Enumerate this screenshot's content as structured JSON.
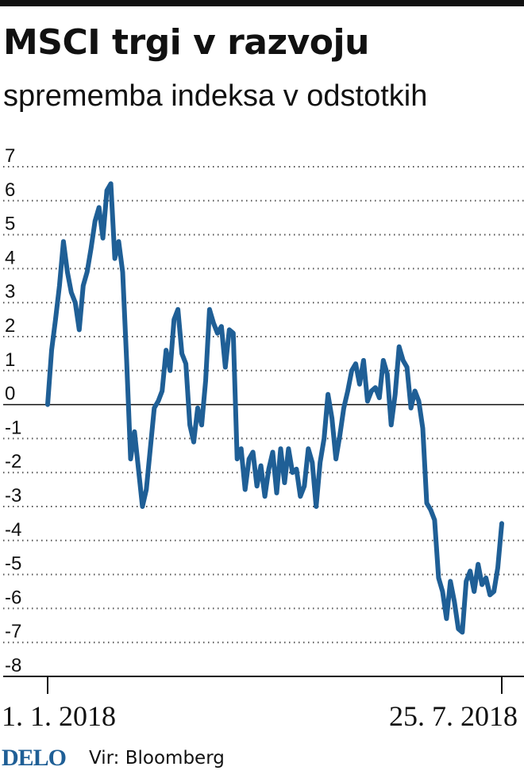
{
  "header": {
    "title": "MSCI trgi v razvoju",
    "subtitle": "sprememba indeksa v odstotkih"
  },
  "footer": {
    "logo": "DELO",
    "source": "Vir: Bloomberg"
  },
  "colors": {
    "line": "#1f5f96",
    "grid": "#555555",
    "axis": "#111111",
    "logo": "#1f5f96"
  },
  "chart_data": {
    "type": "line",
    "title": "MSCI trgi v razvoju",
    "subtitle": "sprememba indeksa v odstotkih",
    "xlabel": "",
    "ylabel": "",
    "ylim": [
      -8,
      7
    ],
    "yticks": [
      7,
      6,
      5,
      4,
      3,
      2,
      1,
      0,
      -1,
      -2,
      -3,
      -4,
      -5,
      -6,
      -7,
      -8
    ],
    "ytick_labels": [
      "7",
      "6",
      "5",
      "4",
      "3",
      "2",
      "1",
      "0",
      "-1",
      "-2",
      "-3",
      "-4",
      "-5",
      "-6",
      "-7",
      "-8"
    ],
    "x_tick_labels": [
      "1. 1. 2018",
      "25. 7. 2018"
    ],
    "xlim": [
      "2018-01-01",
      "2018-07-25"
    ],
    "grid": "horizontal dotted",
    "series": [
      {
        "values": [
          0.0,
          1.6,
          2.5,
          3.5,
          4.8,
          3.9,
          3.3,
          3.0,
          2.2,
          3.5,
          3.9,
          4.6,
          5.4,
          5.8,
          4.9,
          6.3,
          6.5,
          4.3,
          4.8,
          3.9,
          1.3,
          -1.6,
          -0.8,
          -1.9,
          -3.0,
          -2.5,
          -1.3,
          -0.1,
          0.1,
          0.4,
          1.6,
          1.0,
          2.5,
          2.8,
          1.5,
          1.2,
          -0.6,
          -1.1,
          -0.1,
          -0.6,
          0.7,
          2.8,
          2.4,
          2.1,
          2.3,
          1.1,
          2.2,
          2.1,
          -1.6,
          -1.3,
          -2.5,
          -1.6,
          -1.4,
          -2.4,
          -1.8,
          -2.7,
          -1.9,
          -1.4,
          -2.6,
          -1.3,
          -2.3,
          -1.3,
          -2.0,
          -1.9,
          -2.7,
          -2.4,
          -1.3,
          -1.7,
          -3.0,
          -1.7,
          -1.0,
          0.3,
          -0.4,
          -1.6,
          -0.9,
          -0.1,
          0.4,
          1.0,
          1.2,
          0.6,
          1.3,
          0.1,
          0.4,
          0.5,
          0.2,
          1.3,
          0.9,
          -0.6,
          0.3,
          1.7,
          1.3,
          1.1,
          -0.1,
          0.4,
          0.1,
          -0.7,
          -2.9,
          -3.1,
          -3.4,
          -5.1,
          -5.5,
          -6.3,
          -5.2,
          -5.8,
          -6.6,
          -6.7,
          -5.2,
          -4.9,
          -5.5,
          -4.7,
          -5.3,
          -5.1,
          -5.6,
          -5.5,
          -4.8,
          -3.5
        ]
      }
    ]
  }
}
